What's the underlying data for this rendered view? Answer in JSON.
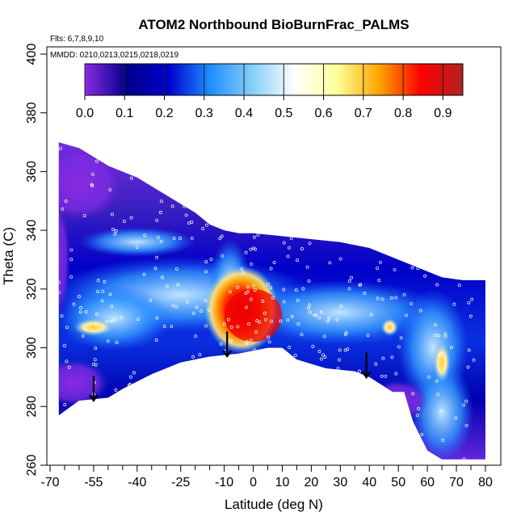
{
  "chart_data": {
    "type": "heatmap",
    "title": "ATOM2 Northbound BioBurnFrac_PALMS",
    "annotations": [
      "Flts: 6,7,8,9,10",
      "MMDD: 0210,0213,0215,0218,0219"
    ],
    "xlabel": "Latitude (deg N)",
    "ylabel": "Theta (C)",
    "xlim": [
      -70,
      82
    ],
    "ylim": [
      260,
      405
    ],
    "x_ticks": [
      -70,
      -55,
      -40,
      -25,
      -10,
      0,
      10,
      20,
      30,
      40,
      50,
      60,
      70,
      80
    ],
    "x_minor_ticks": [
      -65,
      -60,
      -50,
      -45,
      -35,
      -30,
      -20,
      -15,
      -5,
      5,
      15,
      25,
      35,
      45,
      55,
      65,
      75
    ],
    "y_ticks": [
      260,
      280,
      300,
      320,
      340,
      360,
      380,
      400
    ],
    "grid": false,
    "colorbar": {
      "range": [
        0,
        0.95
      ],
      "ticks": [
        0.0,
        0.1,
        0.2,
        0.3,
        0.4,
        0.5,
        0.6,
        0.7,
        0.8,
        0.9
      ],
      "tick_labels": [
        "0.0",
        "0.1",
        "0.2",
        "0.3",
        "0.4",
        "0.5",
        "0.6",
        "0.7",
        "0.8",
        "0.9"
      ],
      "colors": [
        "#8a2be2",
        "#00008b",
        "#0000cd",
        "#1e90ff",
        "#87cefa",
        "#ffffff",
        "#ffff99",
        "#ffa500",
        "#ff0000",
        "#b22222"
      ],
      "placement": "top"
    },
    "data_region_top": [
      [
        -67,
        370
      ],
      [
        -60,
        368
      ],
      [
        -50,
        362
      ],
      [
        -40,
        358
      ],
      [
        -30,
        352
      ],
      [
        -20,
        346
      ],
      [
        -15,
        342
      ],
      [
        -10,
        340
      ],
      [
        -5,
        339
      ],
      [
        0,
        339
      ],
      [
        10,
        338
      ],
      [
        20,
        337
      ],
      [
        30,
        336
      ],
      [
        40,
        334
      ],
      [
        50,
        330
      ],
      [
        55,
        328
      ],
      [
        60,
        326
      ],
      [
        65,
        324
      ],
      [
        72,
        323
      ],
      [
        80,
        323
      ]
    ],
    "data_region_bottom": [
      [
        -67,
        277
      ],
      [
        -60,
        282
      ],
      [
        -50,
        283
      ],
      [
        -45,
        286
      ],
      [
        -35,
        291
      ],
      [
        -25,
        295
      ],
      [
        -15,
        297
      ],
      [
        -5,
        298
      ],
      [
        5,
        300
      ],
      [
        10,
        300
      ],
      [
        15,
        296
      ],
      [
        25,
        293
      ],
      [
        35,
        292
      ],
      [
        40,
        290
      ],
      [
        48,
        285
      ],
      [
        52,
        285
      ],
      [
        55,
        275
      ],
      [
        60,
        265
      ],
      [
        65,
        262
      ],
      [
        72,
        262
      ],
      [
        80,
        262
      ]
    ],
    "values": {
      "background": 0.08,
      "regions": [
        {
          "lat": -2,
          "theta": 313,
          "value": 0.88
        },
        {
          "lat": -8,
          "theta": 320,
          "value": 0.55
        },
        {
          "lat": -7,
          "theta": 323,
          "value": 0.28
        },
        {
          "lat": -55,
          "theta": 307,
          "value": 0.6
        },
        {
          "lat": 45,
          "theta": 305,
          "value": 0.25
        },
        {
          "lat": 65,
          "theta": 295,
          "value": 0.58
        },
        {
          "lat": 65,
          "theta": 280,
          "value": 0.3
        },
        {
          "lat": -60,
          "theta": 355,
          "value": 0.02
        },
        {
          "lat": -60,
          "theta": 290,
          "value": 0.03
        }
      ]
    },
    "arrows": [
      {
        "lat": -55
      },
      {
        "lat": -9
      },
      {
        "lat": 39
      }
    ]
  }
}
